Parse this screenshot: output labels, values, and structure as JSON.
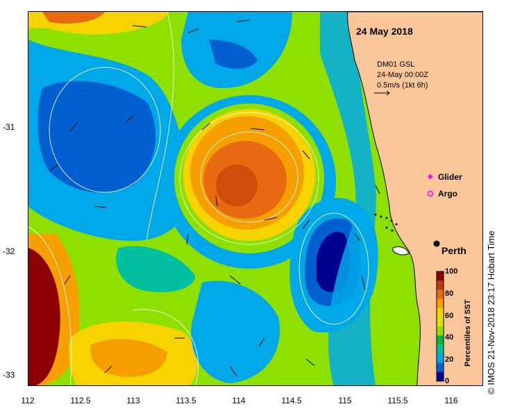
{
  "map": {
    "date_title": "24 May 2018",
    "current_vector": {
      "station": "DM01 GSL",
      "time": "24-May 00:00Z",
      "scale": "0.5m/s (1kt 6h)"
    },
    "legend": {
      "glider": "Glider",
      "argo": "Argo"
    },
    "city_label": "Perth",
    "colorbar": {
      "title": "Percentiles of SST",
      "ticks": [
        "100",
        "80",
        "60",
        "40",
        "20",
        "0"
      ],
      "colors": [
        "#8b0000",
        "#c0390b",
        "#e86a10",
        "#f6a000",
        "#f7d300",
        "#dbe600",
        "#8ee000",
        "#00b840",
        "#00c0a0",
        "#00a8e8",
        "#0060d0",
        "#000090"
      ]
    },
    "x_axis": {
      "ticks": [
        "112",
        "112.5",
        "113",
        "113.5",
        "114",
        "114.5",
        "115",
        "115.5",
        "116"
      ]
    },
    "y_axis": {
      "ticks": [
        "-31",
        "-32",
        "-33"
      ]
    },
    "copyright": "© IMOS 21-Nov-2018 23:17 Hobart Time",
    "colors": {
      "land": "#fbc69a",
      "deep_blue": "#000090",
      "blue": "#0060d0",
      "cyan": "#00a8e8",
      "teal": "#00c0a0",
      "green": "#00b840",
      "yellow_green": "#8ee000",
      "yellow": "#f7d300",
      "orange": "#f6a000",
      "dark_orange": "#e86a10",
      "red": "#c0390b",
      "dark_red": "#8b0000",
      "glider_marker": "#ff00ff"
    }
  }
}
